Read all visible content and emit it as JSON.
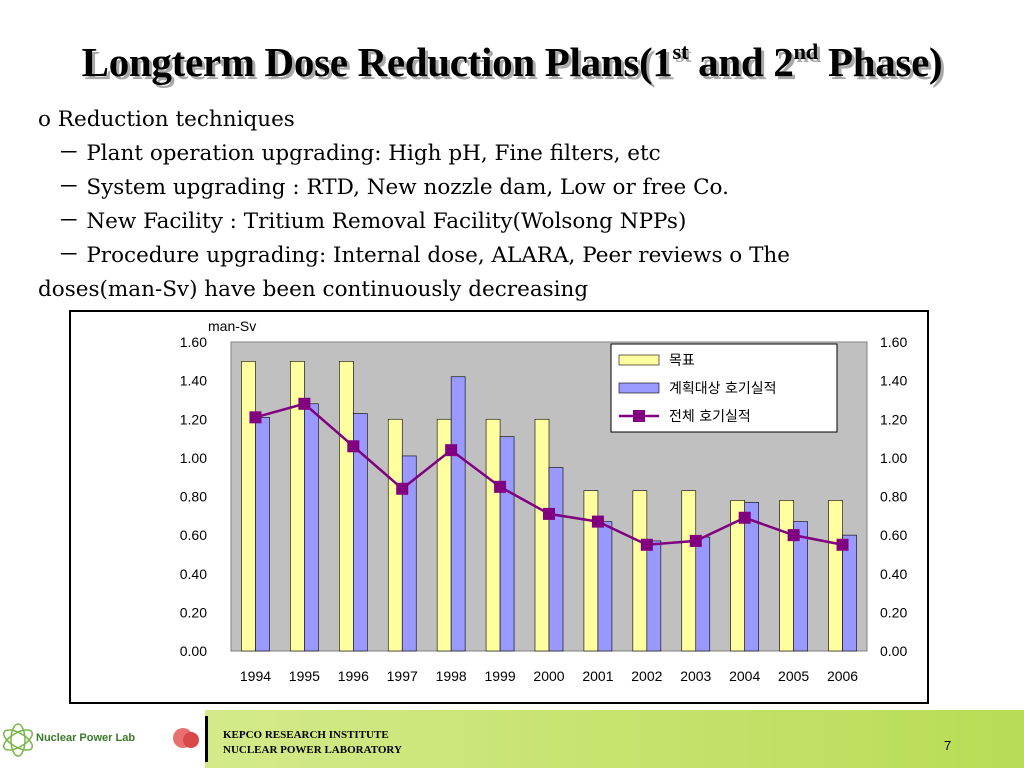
{
  "slide": {
    "title_main": "Longterm Dose Reduction Plans(1",
    "title_sup1": "st",
    "title_mid": " and 2",
    "title_sup2": "nd",
    "title_end": " Phase)",
    "bullets": [
      "o Reduction techniques",
      "－ Plant operation upgrading: High pH, Fine filters, etc",
      "－ System upgrading : RTD, New nozzle dam, Low or free Co.",
      "－ New Facility : Tritium Removal Facility(Wolsong NPPs)",
      "－ Procedure upgrading: Internal dose, ALARA, Peer reviews o The",
      "doses(man-Sv) have been continuously decreasing"
    ]
  },
  "chart_data": {
    "type": "bar",
    "ylabel": "man-Sv",
    "ylim": [
      0,
      1.6
    ],
    "yticks": [
      "0.00",
      "0.20",
      "0.40",
      "0.60",
      "0.80",
      "1.00",
      "1.20",
      "1.40",
      "1.60"
    ],
    "categories": [
      "1994",
      "1995",
      "1996",
      "1997",
      "1998",
      "1999",
      "2000",
      "2001",
      "2002",
      "2003",
      "2004",
      "2005",
      "2006"
    ],
    "series": [
      {
        "name": "목표",
        "type": "bar",
        "color": "#ffffa0",
        "values": [
          1.5,
          1.5,
          1.5,
          1.2,
          1.2,
          1.2,
          1.2,
          0.83,
          0.83,
          0.83,
          0.78,
          0.78,
          0.78
        ]
      },
      {
        "name": "계획대상 호기실적",
        "type": "bar",
        "color": "#9999ff",
        "values": [
          1.21,
          1.28,
          1.23,
          1.01,
          1.42,
          1.11,
          0.95,
          0.67,
          0.57,
          0.59,
          0.77,
          0.67,
          0.6
        ]
      },
      {
        "name": "전체 호기실적",
        "type": "line",
        "color": "#800080",
        "values": [
          1.21,
          1.28,
          1.06,
          0.84,
          1.04,
          0.85,
          0.71,
          0.67,
          0.55,
          0.57,
          0.69,
          0.6,
          0.55
        ]
      }
    ],
    "legend": "top-right",
    "plot_bg": "#c0c0c0"
  },
  "footer": {
    "logo_text": "Nuclear Power Lab",
    "institute_line1": "KEPCO RESEARCH INSTITUTE",
    "institute_line2": "NUCLEAR POWER LABORATORY",
    "page_number": "7"
  }
}
